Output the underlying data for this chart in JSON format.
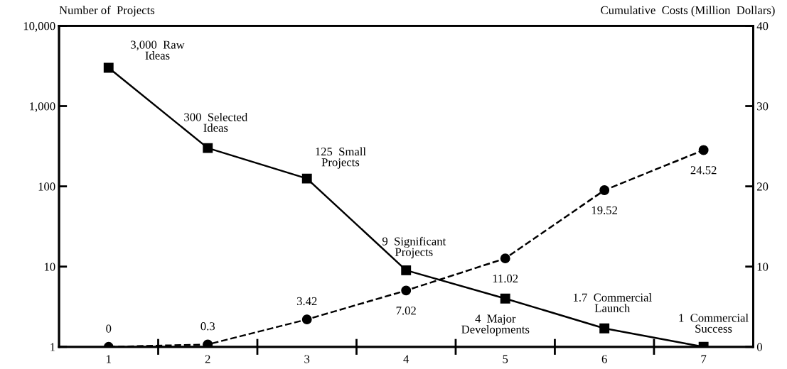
{
  "chart_data": {
    "type": "line",
    "ylabel": "Number of  Projects",
    "y2label": "Cumulative  Costs (Million  Dollars)",
    "categories": [
      "1",
      "2",
      "3",
      "4",
      "5",
      "6",
      "7"
    ],
    "log": "y",
    "ylim": [
      1,
      10000
    ],
    "yticks": [
      1,
      10,
      100,
      {
        "value": 1000,
        "label": "1,000"
      },
      {
        "value": 10000,
        "label": "10,000"
      }
    ],
    "y2lim": [
      0,
      40
    ],
    "y2ticks": [
      0,
      10,
      20,
      30,
      40
    ],
    "grid": false,
    "series": [
      {
        "color": "#000000",
        "marker": "square",
        "line_style": "solid",
        "values": [
          3000,
          300,
          125,
          9,
          4,
          1.7,
          1
        ],
        "value_labels": [
          "3,000  Raw\nIdeas",
          "300  Selected\nIdeas",
          "125  Small\nProjects",
          "9  Significant\nProjects",
          "4  Major\nDevelopments",
          "1.7  Commercial\nLaunch",
          "1  Commercial\nSuccess"
        ]
      },
      {
        "color": "#000000",
        "marker": "circle",
        "line_style": "dashed",
        "axis": "y2",
        "values": [
          0,
          0.3,
          3.42,
          7.02,
          11.02,
          19.52,
          24.52
        ],
        "data_labels": true
      }
    ]
  }
}
